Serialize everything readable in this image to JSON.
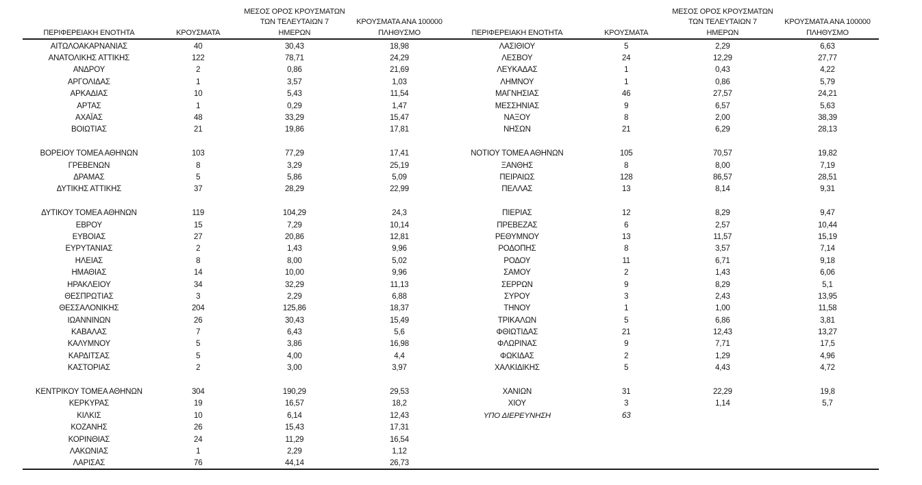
{
  "accent_colors": {
    "text": "#161616",
    "rule": "#1c1c1c",
    "background": "#ffffff"
  },
  "table": {
    "headers": {
      "region": "ΠΕΡΙΦΕΡΕΙΑΚΗ ΕΝΟΤΗΤΑ",
      "cases": "ΚΡΟΥΣΜΑΤΑ",
      "avg7_line1": "ΜΕΣΟΣ ΟΡΟΣ ΚΡΟΥΣΜΑΤΩΝ",
      "avg7_line2": "ΤΩΝ ΤΕΛΕΥΤΑΙΩΝ 7",
      "avg7_line3": "ΗΜΕΡΩΝ",
      "per100k_line1": "ΚΡΟΥΣΜΑΤΑ ΑΝΑ 100000",
      "per100k_line2": "ΠΛΗΘΥΣΜΟ"
    },
    "left_rows": [
      [
        "ΑΙΤΩΛΟΑΚΑΡΝΑΝΙΑΣ",
        "40",
        "30,43",
        "18,98"
      ],
      [
        "ΑΝΑΤΟΛΙΚΗΣ ΑΤΤΙΚΗΣ",
        "122",
        "78,71",
        "24,29"
      ],
      [
        "ΑΝΔΡΟΥ",
        "2",
        "0,86",
        "21,69"
      ],
      [
        "ΑΡΓΟΛΙΔΑΣ",
        "1",
        "3,57",
        "1,03"
      ],
      [
        "ΑΡΚΑΔΙΑΣ",
        "10",
        "5,43",
        "11,54"
      ],
      [
        "ΑΡΤΑΣ",
        "1",
        "0,29",
        "1,47"
      ],
      [
        "ΑΧΑΪΑΣ",
        "48",
        "33,29",
        "15,47"
      ],
      [
        "ΒΟΙΩΤΙΑΣ",
        "21",
        "19,86",
        "17,81"
      ],
      null,
      [
        "ΒΟΡΕΙΟΥ ΤΟΜΕΑ ΑΘΗΝΩΝ",
        "103",
        "77,29",
        "17,41"
      ],
      [
        "ΓΡΕΒΕΝΩΝ",
        "8",
        "3,29",
        "25,19"
      ],
      [
        "ΔΡΑΜΑΣ",
        "5",
        "5,86",
        "5,09"
      ],
      [
        "ΔΥΤΙΚΗΣ ΑΤΤΙΚΗΣ",
        "37",
        "28,29",
        "22,99"
      ],
      null,
      [
        "ΔΥΤΙΚΟΥ ΤΟΜΕΑ ΑΘΗΝΩΝ",
        "119",
        "104,29",
        "24,3"
      ],
      [
        "ΕΒΡΟΥ",
        "15",
        "7,29",
        "10,14"
      ],
      [
        "ΕΥΒΟΙΑΣ",
        "27",
        "20,86",
        "12,81"
      ],
      [
        "ΕΥΡΥΤΑΝΙΑΣ",
        "2",
        "1,43",
        "9,96"
      ],
      [
        "ΗΛΕΙΑΣ",
        "8",
        "8,00",
        "5,02"
      ],
      [
        "ΗΜΑΘΙΑΣ",
        "14",
        "10,00",
        "9,96"
      ],
      [
        "ΗΡΑΚΛΕΙΟΥ",
        "34",
        "32,29",
        "11,13"
      ],
      [
        "ΘΕΣΠΡΩΤΙΑΣ",
        "3",
        "2,29",
        "6,88"
      ],
      [
        "ΘΕΣΣΑΛΟΝΙΚΗΣ",
        "204",
        "125,86",
        "18,37"
      ],
      [
        "ΙΩΑΝΝΙΝΩΝ",
        "26",
        "30,43",
        "15,49"
      ],
      [
        "ΚΑΒΑΛΑΣ",
        "7",
        "6,43",
        "5,6"
      ],
      [
        "ΚΑΛΥΜΝΟΥ",
        "5",
        "3,86",
        "16,98"
      ],
      [
        "ΚΑΡΔΙΤΣΑΣ",
        "5",
        "4,00",
        "4,4"
      ],
      [
        "ΚΑΣΤΟΡΙΑΣ",
        "2",
        "3,00",
        "3,97"
      ],
      null,
      [
        "ΚΕΝΤΡΙΚΟΥ ΤΟΜΕΑ ΑΘΗΝΩΝ",
        "304",
        "190,29",
        "29,53"
      ],
      [
        "ΚΕΡΚΥΡΑΣ",
        "19",
        "16,57",
        "18,2"
      ],
      [
        "ΚΙΛΚΙΣ",
        "10",
        "6,14",
        "12,43"
      ],
      [
        "ΚΟΖΑΝΗΣ",
        "26",
        "15,43",
        "17,31"
      ],
      [
        "ΚΟΡΙΝΘΙΑΣ",
        "24",
        "11,29",
        "16,54"
      ],
      [
        "ΛΑΚΩΝΙΑΣ",
        "1",
        "2,29",
        "1,12"
      ],
      [
        "ΛΑΡΙΣΑΣ",
        "76",
        "44,14",
        "26,73"
      ]
    ],
    "right_rows": [
      [
        "ΛΑΣΙΘΙΟΥ",
        "5",
        "2,29",
        "6,63"
      ],
      [
        "ΛΕΣΒΟΥ",
        "24",
        "12,29",
        "27,77"
      ],
      [
        "ΛΕΥΚΑΔΑΣ",
        "1",
        "0,43",
        "4,22"
      ],
      [
        "ΛΗΜΝΟΥ",
        "1",
        "0,86",
        "5,79"
      ],
      [
        "ΜΑΓΝΗΣΙΑΣ",
        "46",
        "27,57",
        "24,21"
      ],
      [
        "ΜΕΣΣΗΝΙΑΣ",
        "9",
        "6,57",
        "5,63"
      ],
      [
        "ΝΑΞΟΥ",
        "8",
        "2,00",
        "38,39"
      ],
      [
        "ΝΗΣΩΝ",
        "21",
        "6,29",
        "28,13"
      ],
      null,
      [
        "ΝΟΤΙΟΥ ΤΟΜΕΑ ΑΘΗΝΩΝ",
        "105",
        "70,57",
        "19,82"
      ],
      [
        "ΞΑΝΘΗΣ",
        "8",
        "8,00",
        "7,19"
      ],
      [
        "ΠΕΙΡΑΙΩΣ",
        "128",
        "86,57",
        "28,51"
      ],
      [
        "ΠΕΛΛΑΣ",
        "13",
        "8,14",
        "9,31"
      ],
      null,
      [
        "ΠΙΕΡΙΑΣ",
        "12",
        "8,29",
        "9,47"
      ],
      [
        "ΠΡΕΒΕΖΑΣ",
        "6",
        "2,57",
        "10,44"
      ],
      [
        "ΡΕΘΥΜΝΟΥ",
        "13",
        "11,57",
        "15,19"
      ],
      [
        "ΡΟΔΟΠΗΣ",
        "8",
        "3,57",
        "7,14"
      ],
      [
        "ΡΟΔΟΥ",
        "11",
        "6,71",
        "9,18"
      ],
      [
        "ΣΑΜΟΥ",
        "2",
        "1,43",
        "6,06"
      ],
      [
        "ΣΕΡΡΩΝ",
        "9",
        "8,29",
        "5,1"
      ],
      [
        "ΣΥΡΟΥ",
        "3",
        "2,43",
        "13,95"
      ],
      [
        "ΤΗΝΟΥ",
        "1",
        "1,00",
        "11,58"
      ],
      [
        "ΤΡΙΚΑΛΩΝ",
        "5",
        "6,86",
        "3,81"
      ],
      [
        "ΦΘΙΩΤΙΔΑΣ",
        "21",
        "12,43",
        "13,27"
      ],
      [
        "ΦΛΩΡΙΝΑΣ",
        "9",
        "7,71",
        "17,5"
      ],
      [
        "ΦΩΚΙΔΑΣ",
        "2",
        "1,29",
        "4,96"
      ],
      [
        "ΧΑΛΚΙΔΙΚΗΣ",
        "5",
        "4,43",
        "4,72"
      ],
      null,
      [
        "ΧΑΝΙΩΝ",
        "31",
        "22,29",
        "19,8"
      ],
      [
        "ΧΙΟΥ",
        "3",
        "1,14",
        "5,7"
      ],
      {
        "cells": [
          "ΥΠΟ ΔΙΕΡΕΥΝΗΣΗ",
          "63",
          "",
          ""
        ],
        "italic": true
      }
    ]
  }
}
